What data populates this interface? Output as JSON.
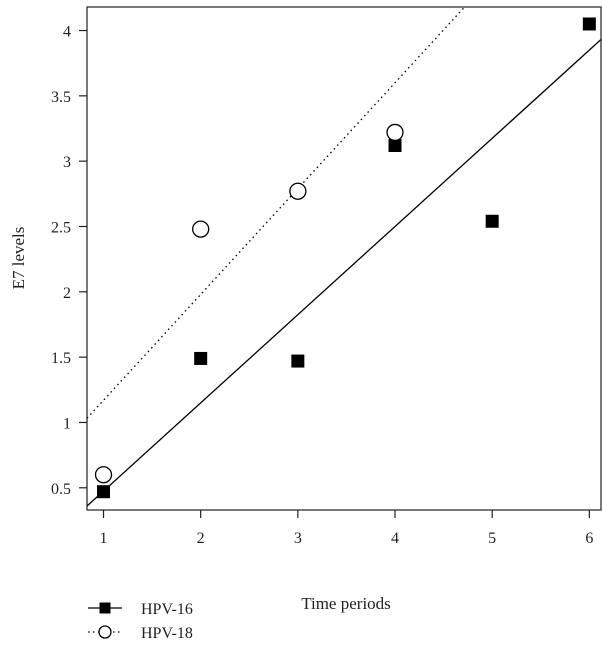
{
  "chart_data": {
    "type": "scatter",
    "xlabel": "Time periods",
    "ylabel": "E7 levels",
    "xlim": [
      0.83,
      6.12
    ],
    "ylim": [
      0.33,
      4.18
    ],
    "xticks": [
      1,
      2,
      3,
      4,
      5,
      6
    ],
    "yticks": [
      0.5,
      1,
      1.5,
      2,
      2.5,
      3,
      3.5,
      4
    ],
    "xtick_labels": [
      "1",
      "2",
      "3",
      "4",
      "5",
      "6"
    ],
    "ytick_labels": [
      "0.5",
      "1",
      "1.5",
      "2",
      "2.5",
      "3",
      "3.5",
      "4"
    ],
    "grid": false,
    "legend_position": "below-left",
    "series": [
      {
        "name": "HPV-16",
        "marker": "filled-square",
        "line_style": "solid",
        "color": "#000000",
        "x": [
          1,
          2,
          3,
          4,
          5,
          6
        ],
        "y": [
          0.47,
          1.49,
          1.47,
          3.12,
          2.54,
          4.05
        ],
        "fit_line": {
          "intercept": -0.2,
          "slope": 0.675
        }
      },
      {
        "name": "HPV-18",
        "marker": "open-circle",
        "line_style": "dotted",
        "color": "#000000",
        "x": [
          1,
          2,
          3,
          4
        ],
        "y": [
          0.6,
          2.48,
          2.77,
          3.22
        ],
        "fit_line": {
          "intercept": 0.36,
          "slope": 0.81
        }
      }
    ]
  }
}
